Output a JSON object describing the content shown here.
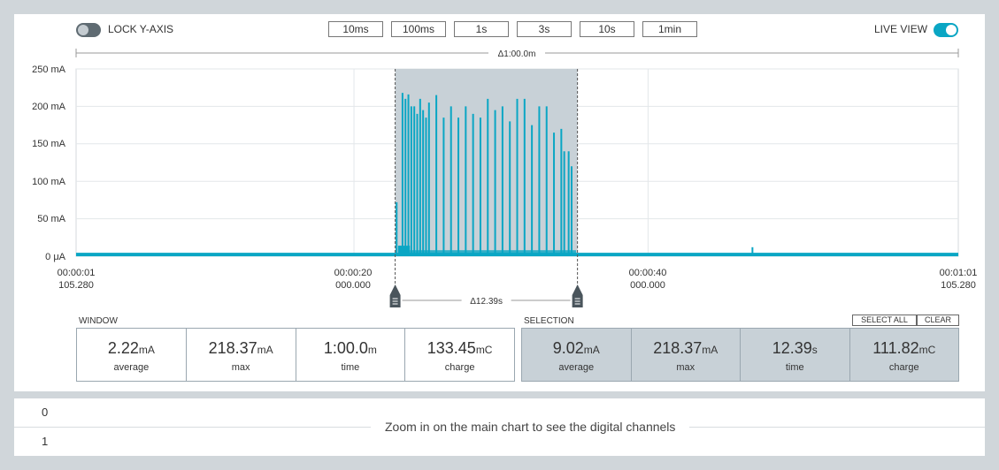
{
  "toolbar": {
    "lock_label": "LOCK Y-AXIS",
    "live_label": "LIVE VIEW",
    "lock_on": false,
    "live_on": true,
    "windows": [
      "10ms",
      "100ms",
      "1s",
      "3s",
      "10s",
      "1min"
    ]
  },
  "colors": {
    "accent": "#0aa6c4",
    "selection": "#c8d1d7",
    "grid": "#e3e7ea"
  },
  "chart": {
    "window_delta": "Δ1:00.0m",
    "selection_delta": "Δ12.39s",
    "y_ticks": [
      "250 mA",
      "200 mA",
      "150 mA",
      "100 mA",
      "50 mA",
      "0 μA"
    ],
    "x_ticks": [
      {
        "l1": "00:00:01",
        "l2": "105.280"
      },
      {
        "l1": "00:00:20",
        "l2": "000.000"
      },
      {
        "l1": "00:00:40",
        "l2": "000.000"
      },
      {
        "l1": "00:01:01",
        "l2": "105.280"
      }
    ]
  },
  "chart_data": {
    "type": "line",
    "ylim": [
      0,
      250
    ],
    "x_unit": "s",
    "xlim": [
      0,
      60
    ],
    "y_unit": "mA",
    "baseline": 2.22,
    "selection": [
      21.7,
      34.1
    ],
    "series": [
      {
        "x": [
          0,
          21.6,
          21.8,
          22.0,
          22.2,
          22.4,
          22.6,
          22.8,
          23.0,
          23.2,
          23.4,
          23.6,
          23.8,
          24.0,
          24.5,
          25.0,
          25.5,
          26.0,
          26.5,
          27.0,
          27.5,
          28.0,
          28.5,
          29.0,
          29.5,
          30.0,
          30.5,
          31.0,
          31.5,
          32.0,
          32.5,
          33.0,
          33.2,
          33.5,
          33.7,
          34.0,
          34.2,
          46.0,
          46.1,
          60.0
        ],
        "values": [
          2.2,
          2.2,
          72,
          14,
          218,
          210,
          216,
          200,
          200,
          190,
          210,
          195,
          185,
          205,
          215,
          185,
          200,
          185,
          200,
          190,
          185,
          210,
          195,
          200,
          180,
          210,
          210,
          175,
          200,
          200,
          165,
          170,
          140,
          140,
          120,
          2.2,
          2.2,
          12,
          2.2,
          2.2
        ]
      }
    ]
  },
  "window_stats": {
    "title": "WINDOW",
    "cells": [
      {
        "value": "2.22",
        "unit": "mA",
        "label": "average"
      },
      {
        "value": "218.37",
        "unit": "mA",
        "label": "max"
      },
      {
        "value": "1:00.0",
        "unit": "m",
        "label": "time"
      },
      {
        "value": "133.45",
        "unit": "mC",
        "label": "charge"
      }
    ]
  },
  "selection_stats": {
    "title": "SELECTION",
    "select_all": "SELECT ALL",
    "clear": "CLEAR",
    "cells": [
      {
        "value": "9.02",
        "unit": "mA",
        "label": "average"
      },
      {
        "value": "218.37",
        "unit": "mA",
        "label": "max"
      },
      {
        "value": "12.39",
        "unit": "s",
        "label": "time"
      },
      {
        "value": "111.82",
        "unit": "mC",
        "label": "charge"
      }
    ]
  },
  "digital": {
    "channels": [
      "0",
      "1"
    ],
    "message": "Zoom in on the main chart to see the digital channels"
  }
}
